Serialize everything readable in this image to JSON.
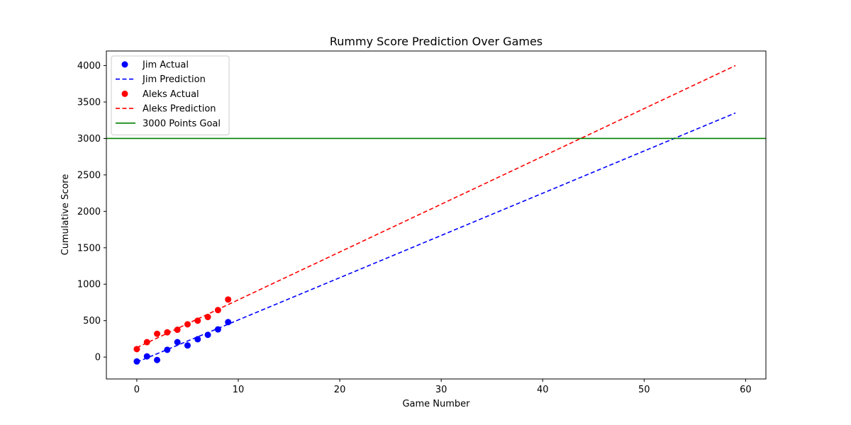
{
  "chart_data": {
    "type": "scatter",
    "title": "Rummy Score Prediction Over Games",
    "xlabel": "Game Number",
    "ylabel": "Cumulative Score",
    "xlim": [
      -3,
      62
    ],
    "ylim": [
      -300,
      4200
    ],
    "xticks": [
      0,
      10,
      20,
      30,
      40,
      50,
      60
    ],
    "yticks": [
      0,
      500,
      1000,
      1500,
      2000,
      2500,
      3000,
      3500,
      4000
    ],
    "grid": false,
    "legend_position": "top-left",
    "series": [
      {
        "name": "Jim Actual",
        "kind": "scatter",
        "color": "#0000ff",
        "x": [
          0,
          1,
          2,
          3,
          4,
          5,
          6,
          7,
          8,
          9
        ],
        "y": [
          -60,
          10,
          -40,
          100,
          205,
          160,
          245,
          305,
          380,
          480
        ]
      },
      {
        "name": "Jim Prediction",
        "kind": "dashed-line",
        "color": "#0000ff",
        "x": [
          0,
          59
        ],
        "y": [
          -70,
          3350
        ]
      },
      {
        "name": "Aleks Actual",
        "kind": "scatter",
        "color": "#ff0000",
        "x": [
          0,
          1,
          2,
          3,
          4,
          5,
          6,
          7,
          8,
          9
        ],
        "y": [
          110,
          205,
          320,
          340,
          375,
          450,
          500,
          550,
          645,
          790
        ]
      },
      {
        "name": "Aleks Prediction",
        "kind": "dashed-line",
        "color": "#ff0000",
        "x": [
          0,
          59
        ],
        "y": [
          130,
          4000
        ]
      },
      {
        "name": "3000 Points Goal",
        "kind": "hline",
        "color": "#008000",
        "y": 3000
      }
    ]
  }
}
